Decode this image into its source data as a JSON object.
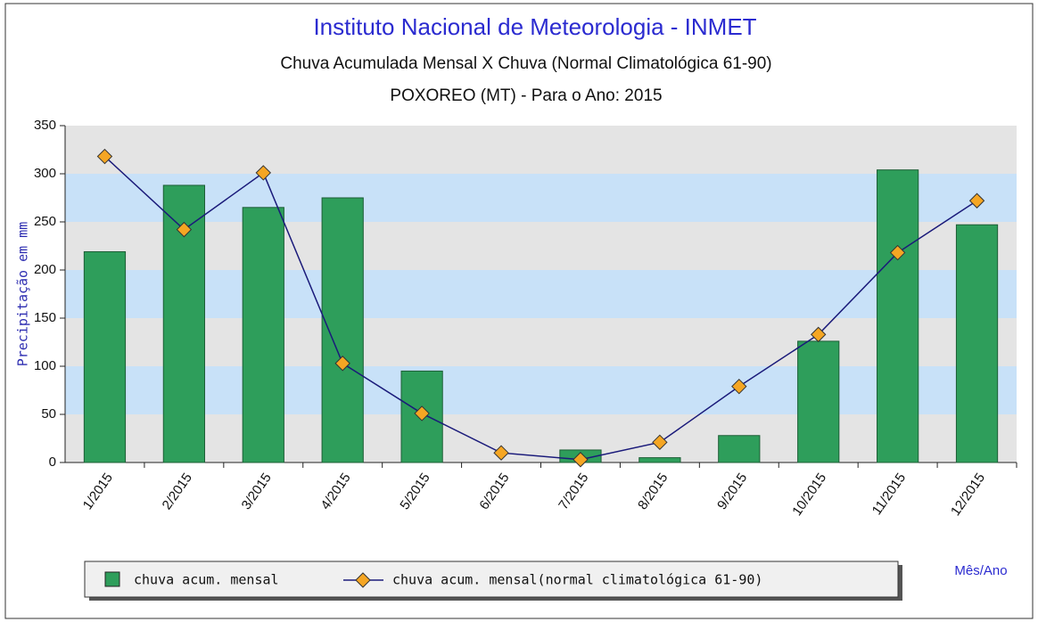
{
  "chart_data": {
    "type": "bar",
    "title": "Instituto Nacional de Meteorologia - INMET",
    "subtitle": "Chuva Acumulada Mensal X Chuva (Normal Climatológica 61-90)",
    "subtitle2": "POXOREO (MT) - Para o Ano: 2015",
    "y_label": "Precipitação em mm",
    "x_label": "Mês/Ano",
    "categories": [
      "1/2015",
      "2/2015",
      "3/2015",
      "4/2015",
      "5/2015",
      "6/2015",
      "7/2015",
      "8/2015",
      "9/2015",
      "10/2015",
      "11/2015",
      "12/2015"
    ],
    "series": [
      {
        "name": "chuva acum. mensal",
        "type": "bar",
        "color": "#2e9e5b",
        "values": [
          219,
          288,
          265,
          275,
          95,
          0,
          13,
          5,
          28,
          126,
          304,
          247
        ]
      },
      {
        "name": "chuva acum. mensal(normal climatológica 61-90)",
        "type": "line",
        "color": "#f5a623",
        "line_color": "#1a1a7a",
        "values": [
          318,
          242,
          301,
          103,
          51,
          10,
          3,
          21,
          79,
          133,
          218,
          272
        ]
      }
    ],
    "ylim": [
      0,
      350
    ],
    "yticks": [
      0,
      50,
      100,
      150,
      200,
      250,
      300,
      350
    ],
    "band_colors": [
      "#e4e4e4",
      "#c8e1f8"
    ]
  }
}
